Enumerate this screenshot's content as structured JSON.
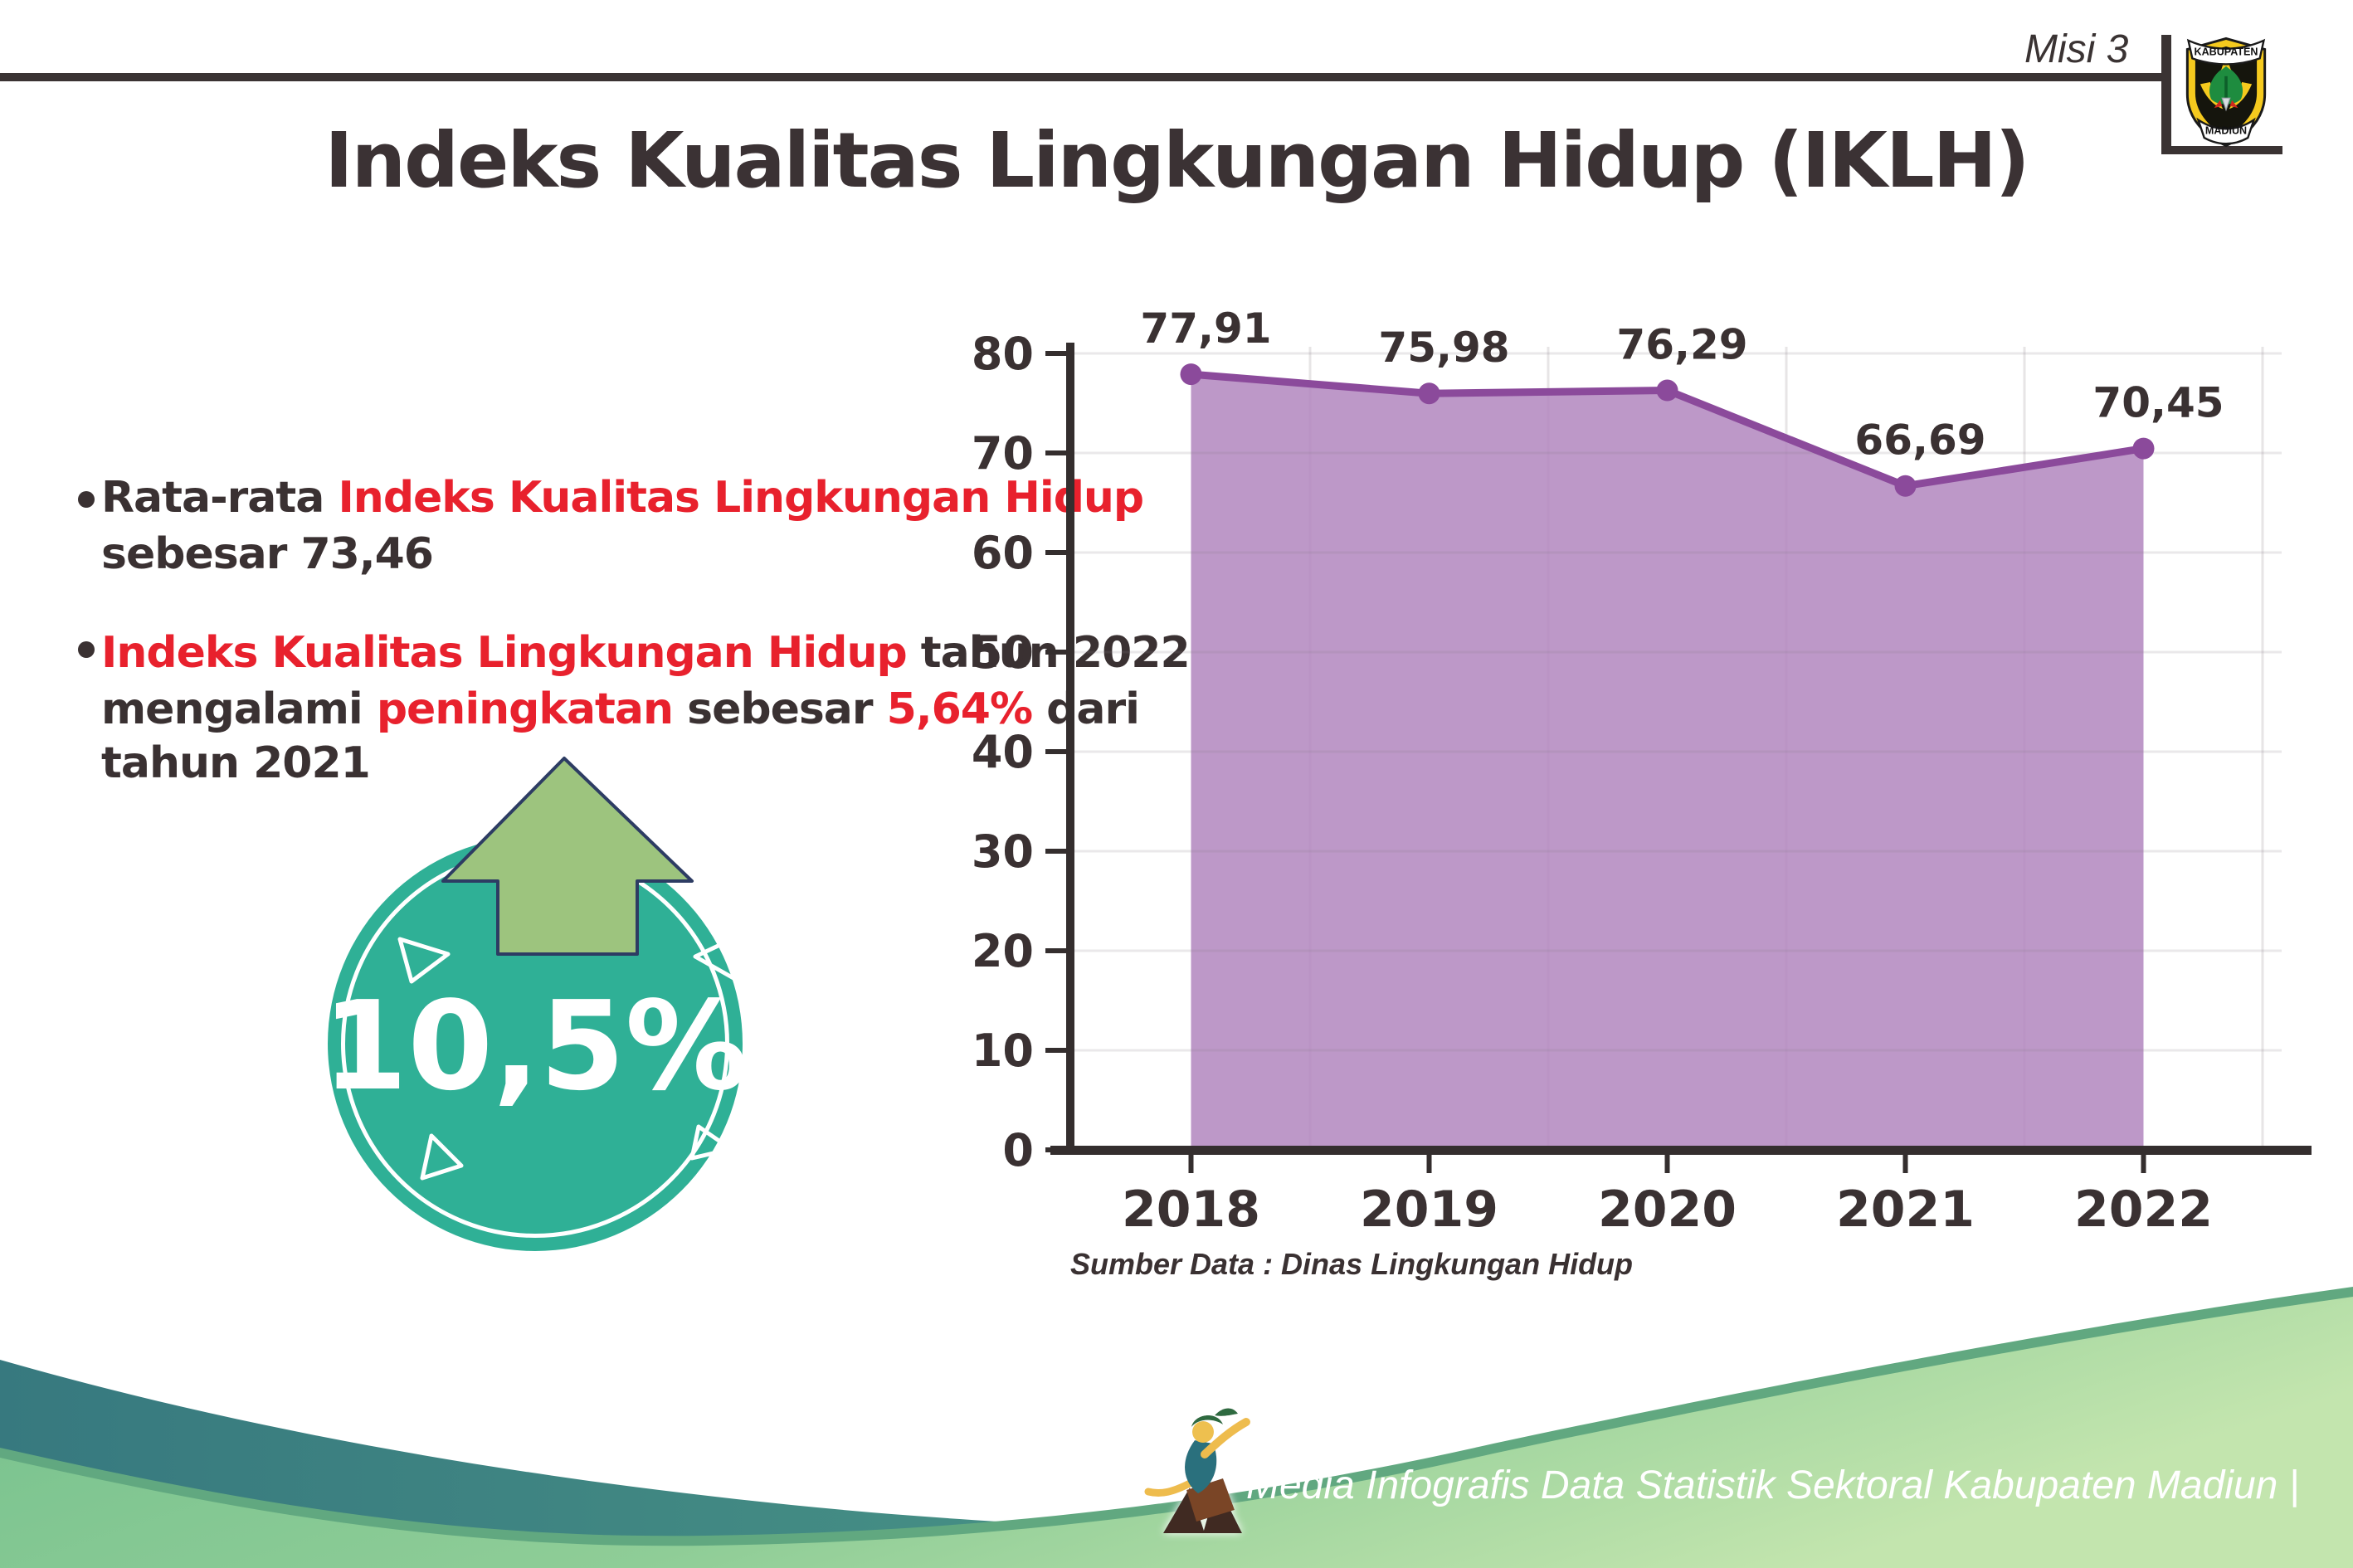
{
  "page": {
    "title": "Indeks Kualitas Lingkungan Hidup (IKLH)",
    "mission_label": "Misi 3"
  },
  "logo": {
    "top_text": "KABUPATEN",
    "bottom_text": "MADIUN"
  },
  "bullets": {
    "b1_l1_black": "Rata-rata ",
    "b1_l1_red": "Indeks Kualitas Lingkungan Hidup",
    "b1_l2": "sebesar 73,46",
    "b2_l1_red": "Indeks Kualitas Lingkungan Hidup",
    "b2_l1_black": " tahun 2022",
    "b2_l2_black1": "mengalami ",
    "b2_l2_red1": "peningkatan",
    "b2_l2_black2": " sebesar ",
    "b2_l2_red2": "5,64%",
    "b2_l2_black3": " dari",
    "b2_l3": "tahun 2021"
  },
  "badge": {
    "value": "10,5%",
    "meaning": "peningkatan"
  },
  "chart_data": {
    "type": "area",
    "categories": [
      "2018",
      "2019",
      "2020",
      "2021",
      "2022"
    ],
    "values": [
      77.91,
      75.98,
      76.29,
      66.69,
      70.45
    ],
    "value_labels": [
      "77,91",
      "75,98",
      "76,29",
      "66,69",
      "70,45"
    ],
    "title": "Indeks Kualitas Lingkungan Hidup (IKLH)",
    "xlabel": "",
    "ylabel": "",
    "ylim": [
      0,
      80
    ],
    "ytick_step": 10,
    "grid": true,
    "legend": false,
    "source": "Sumber Data : Dinas Lingkungan Hidup",
    "line_color": "#8b4a9b",
    "marker_color": "#8b4a9b",
    "fill_color": "#b286be",
    "axis_color": "#342e2e",
    "label_color": "#3a3132"
  },
  "footer": {
    "credit": "Media Infografis Data Statistik Sektoral Kabupaten Madiun |"
  },
  "colors": {
    "accent_red": "#e8212d",
    "text_dark": "#3a3132",
    "badge_teal": "#2fb096",
    "arrow_green": "#9dc47e",
    "arrow_outline": "#2d3c63",
    "footer_teal_start": "#37797f",
    "footer_teal_end": "#4f9d88",
    "footer_edge_green": "#61a880",
    "footer_light_start": "#74c08d",
    "footer_light_end": "#c3e5ae"
  }
}
